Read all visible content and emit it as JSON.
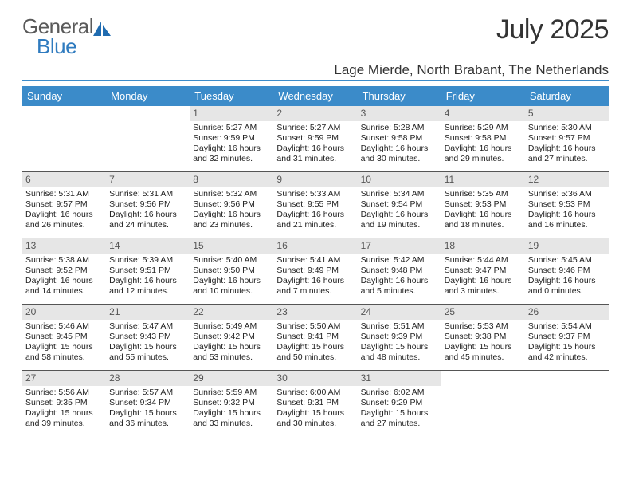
{
  "logo": {
    "general": "General",
    "blue": "Blue"
  },
  "title": "July 2025",
  "location": "Lage Mierde, North Brabant, The Netherlands",
  "colors": {
    "header_bar": "#3b8bc9",
    "daynum_bg": "#e6e6e6",
    "logo_gray": "#5a5a5a",
    "logo_blue": "#2f7bbf",
    "rule": "#555555"
  },
  "day_headers": [
    "Sunday",
    "Monday",
    "Tuesday",
    "Wednesday",
    "Thursday",
    "Friday",
    "Saturday"
  ],
  "weeks": [
    [
      {
        "n": "",
        "sunrise": "",
        "sunset": "",
        "day": ""
      },
      {
        "n": "",
        "sunrise": "",
        "sunset": "",
        "day": ""
      },
      {
        "n": "1",
        "sunrise": "Sunrise: 5:27 AM",
        "sunset": "Sunset: 9:59 PM",
        "day": "Daylight: 16 hours and 32 minutes."
      },
      {
        "n": "2",
        "sunrise": "Sunrise: 5:27 AM",
        "sunset": "Sunset: 9:59 PM",
        "day": "Daylight: 16 hours and 31 minutes."
      },
      {
        "n": "3",
        "sunrise": "Sunrise: 5:28 AM",
        "sunset": "Sunset: 9:58 PM",
        "day": "Daylight: 16 hours and 30 minutes."
      },
      {
        "n": "4",
        "sunrise": "Sunrise: 5:29 AM",
        "sunset": "Sunset: 9:58 PM",
        "day": "Daylight: 16 hours and 29 minutes."
      },
      {
        "n": "5",
        "sunrise": "Sunrise: 5:30 AM",
        "sunset": "Sunset: 9:57 PM",
        "day": "Daylight: 16 hours and 27 minutes."
      }
    ],
    [
      {
        "n": "6",
        "sunrise": "Sunrise: 5:31 AM",
        "sunset": "Sunset: 9:57 PM",
        "day": "Daylight: 16 hours and 26 minutes."
      },
      {
        "n": "7",
        "sunrise": "Sunrise: 5:31 AM",
        "sunset": "Sunset: 9:56 PM",
        "day": "Daylight: 16 hours and 24 minutes."
      },
      {
        "n": "8",
        "sunrise": "Sunrise: 5:32 AM",
        "sunset": "Sunset: 9:56 PM",
        "day": "Daylight: 16 hours and 23 minutes."
      },
      {
        "n": "9",
        "sunrise": "Sunrise: 5:33 AM",
        "sunset": "Sunset: 9:55 PM",
        "day": "Daylight: 16 hours and 21 minutes."
      },
      {
        "n": "10",
        "sunrise": "Sunrise: 5:34 AM",
        "sunset": "Sunset: 9:54 PM",
        "day": "Daylight: 16 hours and 19 minutes."
      },
      {
        "n": "11",
        "sunrise": "Sunrise: 5:35 AM",
        "sunset": "Sunset: 9:53 PM",
        "day": "Daylight: 16 hours and 18 minutes."
      },
      {
        "n": "12",
        "sunrise": "Sunrise: 5:36 AM",
        "sunset": "Sunset: 9:53 PM",
        "day": "Daylight: 16 hours and 16 minutes."
      }
    ],
    [
      {
        "n": "13",
        "sunrise": "Sunrise: 5:38 AM",
        "sunset": "Sunset: 9:52 PM",
        "day": "Daylight: 16 hours and 14 minutes."
      },
      {
        "n": "14",
        "sunrise": "Sunrise: 5:39 AM",
        "sunset": "Sunset: 9:51 PM",
        "day": "Daylight: 16 hours and 12 minutes."
      },
      {
        "n": "15",
        "sunrise": "Sunrise: 5:40 AM",
        "sunset": "Sunset: 9:50 PM",
        "day": "Daylight: 16 hours and 10 minutes."
      },
      {
        "n": "16",
        "sunrise": "Sunrise: 5:41 AM",
        "sunset": "Sunset: 9:49 PM",
        "day": "Daylight: 16 hours and 7 minutes."
      },
      {
        "n": "17",
        "sunrise": "Sunrise: 5:42 AM",
        "sunset": "Sunset: 9:48 PM",
        "day": "Daylight: 16 hours and 5 minutes."
      },
      {
        "n": "18",
        "sunrise": "Sunrise: 5:44 AM",
        "sunset": "Sunset: 9:47 PM",
        "day": "Daylight: 16 hours and 3 minutes."
      },
      {
        "n": "19",
        "sunrise": "Sunrise: 5:45 AM",
        "sunset": "Sunset: 9:46 PM",
        "day": "Daylight: 16 hours and 0 minutes."
      }
    ],
    [
      {
        "n": "20",
        "sunrise": "Sunrise: 5:46 AM",
        "sunset": "Sunset: 9:45 PM",
        "day": "Daylight: 15 hours and 58 minutes."
      },
      {
        "n": "21",
        "sunrise": "Sunrise: 5:47 AM",
        "sunset": "Sunset: 9:43 PM",
        "day": "Daylight: 15 hours and 55 minutes."
      },
      {
        "n": "22",
        "sunrise": "Sunrise: 5:49 AM",
        "sunset": "Sunset: 9:42 PM",
        "day": "Daylight: 15 hours and 53 minutes."
      },
      {
        "n": "23",
        "sunrise": "Sunrise: 5:50 AM",
        "sunset": "Sunset: 9:41 PM",
        "day": "Daylight: 15 hours and 50 minutes."
      },
      {
        "n": "24",
        "sunrise": "Sunrise: 5:51 AM",
        "sunset": "Sunset: 9:39 PM",
        "day": "Daylight: 15 hours and 48 minutes."
      },
      {
        "n": "25",
        "sunrise": "Sunrise: 5:53 AM",
        "sunset": "Sunset: 9:38 PM",
        "day": "Daylight: 15 hours and 45 minutes."
      },
      {
        "n": "26",
        "sunrise": "Sunrise: 5:54 AM",
        "sunset": "Sunset: 9:37 PM",
        "day": "Daylight: 15 hours and 42 minutes."
      }
    ],
    [
      {
        "n": "27",
        "sunrise": "Sunrise: 5:56 AM",
        "sunset": "Sunset: 9:35 PM",
        "day": "Daylight: 15 hours and 39 minutes."
      },
      {
        "n": "28",
        "sunrise": "Sunrise: 5:57 AM",
        "sunset": "Sunset: 9:34 PM",
        "day": "Daylight: 15 hours and 36 minutes."
      },
      {
        "n": "29",
        "sunrise": "Sunrise: 5:59 AM",
        "sunset": "Sunset: 9:32 PM",
        "day": "Daylight: 15 hours and 33 minutes."
      },
      {
        "n": "30",
        "sunrise": "Sunrise: 6:00 AM",
        "sunset": "Sunset: 9:31 PM",
        "day": "Daylight: 15 hours and 30 minutes."
      },
      {
        "n": "31",
        "sunrise": "Sunrise: 6:02 AM",
        "sunset": "Sunset: 9:29 PM",
        "day": "Daylight: 15 hours and 27 minutes."
      },
      {
        "n": "",
        "sunrise": "",
        "sunset": "",
        "day": ""
      },
      {
        "n": "",
        "sunrise": "",
        "sunset": "",
        "day": ""
      }
    ]
  ]
}
